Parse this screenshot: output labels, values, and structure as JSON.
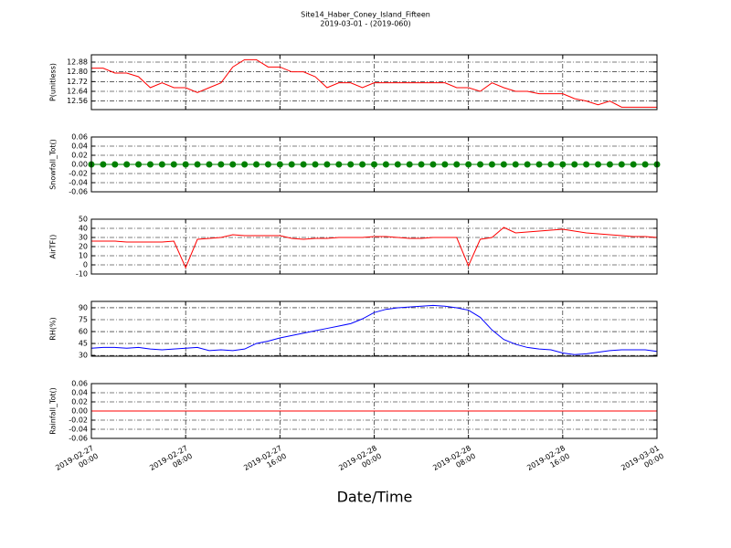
{
  "chart_data": {
    "type": "line",
    "title": "Site14_Haber_Coney_Island_Fifteen",
    "subtitle": "2019-03-01 - (2019-060)",
    "xlabel": "Date/Time",
    "grid": true,
    "xlim": [
      "2019-02-27 00:00",
      "2019-03-01 00:00"
    ],
    "xticks": [
      {
        "value": "2019-02-27 00:00",
        "label": "2019-02-27\n00:00"
      },
      {
        "value": "2019-02-27 08:00",
        "label": "2019-02-27\n08:00"
      },
      {
        "value": "2019-02-27 16:00",
        "label": "2019-02-27\n16:00"
      },
      {
        "value": "2019-02-28 00:00",
        "label": "2019-02-28\n00:00"
      },
      {
        "value": "2019-02-28 08:00",
        "label": "2019-02-28\n08:00"
      },
      {
        "value": "2019-02-28 16:00",
        "label": "2019-02-28\n16:00"
      },
      {
        "value": "2019-03-01 00:00",
        "label": "2019-03-01\n00:00"
      }
    ],
    "x": [
      "2019-02-27 00:00",
      "2019-02-27 01:00",
      "2019-02-27 02:00",
      "2019-02-27 03:00",
      "2019-02-27 04:00",
      "2019-02-27 05:00",
      "2019-02-27 06:00",
      "2019-02-27 07:00",
      "2019-02-27 08:00",
      "2019-02-27 09:00",
      "2019-02-27 10:00",
      "2019-02-27 11:00",
      "2019-02-27 12:00",
      "2019-02-27 13:00",
      "2019-02-27 14:00",
      "2019-02-27 15:00",
      "2019-02-27 16:00",
      "2019-02-27 17:00",
      "2019-02-27 18:00",
      "2019-02-27 19:00",
      "2019-02-27 20:00",
      "2019-02-27 21:00",
      "2019-02-27 22:00",
      "2019-02-27 23:00",
      "2019-02-28 00:00",
      "2019-02-28 01:00",
      "2019-02-28 02:00",
      "2019-02-28 03:00",
      "2019-02-28 04:00",
      "2019-02-28 05:00",
      "2019-02-28 06:00",
      "2019-02-28 07:00",
      "2019-02-28 08:00",
      "2019-02-28 09:00",
      "2019-02-28 10:00",
      "2019-02-28 11:00",
      "2019-02-28 12:00",
      "2019-02-28 13:00",
      "2019-02-28 14:00",
      "2019-02-28 15:00",
      "2019-02-28 16:00",
      "2019-02-28 17:00",
      "2019-02-28 18:00",
      "2019-02-28 19:00",
      "2019-02-28 20:00",
      "2019-02-28 21:00",
      "2019-02-28 22:00",
      "2019-02-28 23:00",
      "2019-03-01 00:00"
    ],
    "panels": [
      {
        "ylabel": "P(unitless)",
        "ylim": [
          12.49,
          12.94
        ],
        "yticks": [
          12.56,
          12.64,
          12.72,
          {
            "value": 12.8,
            "label": "12.80"
          },
          12.88
        ],
        "series": [
          {
            "color": "#ff0000",
            "values": [
              12.83,
              12.83,
              12.79,
              12.79,
              12.76,
              12.67,
              12.71,
              12.67,
              12.67,
              12.63,
              12.67,
              12.71,
              12.84,
              12.9,
              12.9,
              12.84,
              12.84,
              12.8,
              12.8,
              12.76,
              12.67,
              12.71,
              12.71,
              12.67,
              12.71,
              12.71,
              12.71,
              12.71,
              12.71,
              12.71,
              12.71,
              12.67,
              12.67,
              12.64,
              12.71,
              12.67,
              12.64,
              12.64,
              12.62,
              12.62,
              12.62,
              12.58,
              12.56,
              12.53,
              12.56,
              12.51,
              12.51,
              12.51,
              12.51
            ]
          }
        ]
      },
      {
        "ylabel": "Snowfall_Tot()",
        "ylim": [
          -0.06,
          0.06
        ],
        "yticks": [
          -0.06,
          -0.04,
          -0.02,
          {
            "value": 0,
            "label": "0.00"
          },
          0.02,
          0.04,
          0.06
        ],
        "series": [
          {
            "color": "#008000",
            "marker": "o",
            "values": [
              0,
              0,
              0,
              0,
              0,
              0,
              0,
              0,
              0,
              0,
              0,
              0,
              0,
              0,
              0,
              0,
              0,
              0,
              0,
              0,
              0,
              0,
              0,
              0,
              0,
              0,
              0,
              0,
              0,
              0,
              0,
              0,
              0,
              0,
              0,
              0,
              0,
              0,
              0,
              0,
              0,
              0,
              0,
              0,
              0,
              0,
              0,
              0,
              0
            ]
          }
        ]
      },
      {
        "ylabel": "AirTF()",
        "ylim": [
          -10,
          50
        ],
        "yticks": [
          -10,
          0,
          10,
          20,
          30,
          40,
          50
        ],
        "series": [
          {
            "color": "#ff0000",
            "values": [
              26,
              26,
              26,
              25,
              25,
              25,
              25,
              26,
              -3,
              28,
              29,
              30,
              33,
              32,
              32,
              32,
              32,
              29,
              28,
              29,
              29,
              30,
              30,
              30,
              31,
              31,
              30,
              29,
              29,
              30,
              30,
              30,
              -1,
              28,
              30,
              41,
              35,
              36,
              37,
              38,
              39,
              37,
              35,
              34,
              33,
              32,
              31,
              31,
              30
            ]
          }
        ]
      },
      {
        "ylabel": "RH(%)",
        "ylim": [
          29,
          98
        ],
        "yticks": [
          30,
          45,
          60,
          75,
          90
        ],
        "series": [
          {
            "color": "#0000ff",
            "values": [
              39,
              40,
              40,
              39,
              40,
              38,
              37,
              38,
              39,
              40,
              36,
              37,
              36,
              38,
              45,
              48,
              52,
              55,
              58,
              61,
              64,
              67,
              70,
              76,
              84,
              88,
              90,
              91,
              92,
              93,
              92,
              90,
              87,
              78,
              62,
              50,
              44,
              40,
              38,
              37,
              33,
              31,
              32,
              34,
              36,
              37,
              37,
              37,
              35
            ]
          }
        ]
      },
      {
        "ylabel": "Rainfall_Tot()",
        "ylim": [
          -0.06,
          0.06
        ],
        "yticks": [
          -0.06,
          -0.04,
          -0.02,
          {
            "value": 0,
            "label": "0.00"
          },
          0.02,
          0.04,
          0.06
        ],
        "series": [
          {
            "color": "#ff0000",
            "values": [
              0,
              0,
              0,
              0,
              0,
              0,
              0,
              0,
              0,
              0,
              0,
              0,
              0,
              0,
              0,
              0,
              0,
              0,
              0,
              0,
              0,
              0,
              0,
              0,
              0,
              0,
              0,
              0,
              0,
              0,
              0,
              0,
              0,
              0,
              0,
              0,
              0,
              0,
              0,
              0,
              0,
              0,
              0,
              0,
              0,
              0,
              0,
              0,
              0
            ]
          }
        ]
      }
    ]
  }
}
